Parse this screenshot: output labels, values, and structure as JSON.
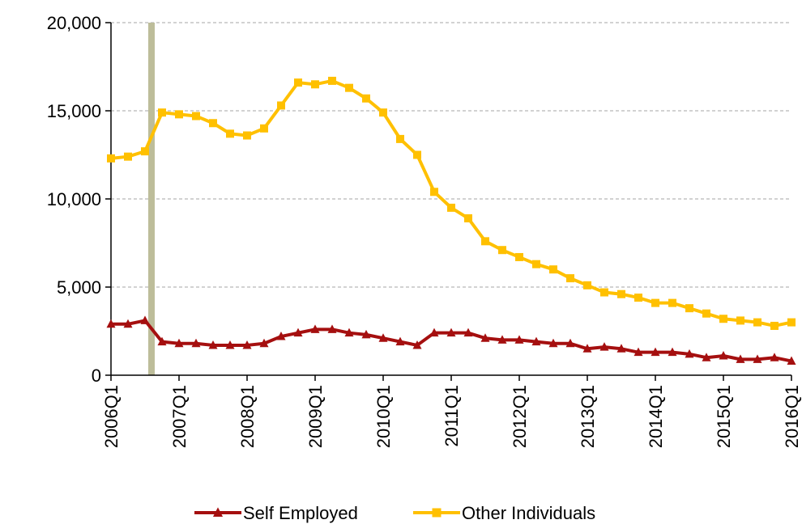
{
  "chart_data": {
    "type": "line",
    "title": "",
    "xlabel": "",
    "ylabel": "",
    "ylim": [
      0,
      20000
    ],
    "y_ticks": [
      0,
      5000,
      10000,
      15000,
      20000
    ],
    "y_tick_labels": [
      "0",
      "5,000",
      "10,000",
      "15,000",
      "20,000"
    ],
    "x_tick_labels": [
      "2006Q1",
      "2007Q1",
      "2008Q1",
      "2009Q1",
      "2010Q1",
      "2011Q1",
      "2012Q1",
      "2013Q1",
      "2014Q1",
      "2015Q1",
      "2016Q1"
    ],
    "grid": "horizontal-dashed",
    "legend_position": "bottom",
    "marker_line_after": "2006Q3",
    "colors": {
      "self_employed": "#A50F0F",
      "other_individuals": "#FFC000",
      "marker_line": "#BDBD9A",
      "grid": "#A6A6A6"
    },
    "x": [
      "2006Q1",
      "2006Q2",
      "2006Q3",
      "2006Q4",
      "2007Q1",
      "2007Q2",
      "2007Q3",
      "2007Q4",
      "2008Q1",
      "2008Q2",
      "2008Q3",
      "2008Q4",
      "2009Q1",
      "2009Q2",
      "2009Q3",
      "2009Q4",
      "2010Q1",
      "2010Q2",
      "2010Q3",
      "2010Q4",
      "2011Q1",
      "2011Q2",
      "2011Q3",
      "2011Q4",
      "2012Q1",
      "2012Q2",
      "2012Q3",
      "2012Q4",
      "2013Q1",
      "2013Q2",
      "2013Q3",
      "2013Q4",
      "2014Q1",
      "2014Q2",
      "2014Q3",
      "2014Q4",
      "2015Q1",
      "2015Q2",
      "2015Q3",
      "2015Q4",
      "2016Q1"
    ],
    "series": [
      {
        "name": "Self Employed",
        "marker": "triangle",
        "values": [
          2900,
          2900,
          3100,
          1900,
          1800,
          1800,
          1700,
          1700,
          1700,
          1800,
          2200,
          2400,
          2600,
          2600,
          2400,
          2300,
          2100,
          1900,
          1700,
          2400,
          2400,
          2400,
          2100,
          2000,
          2000,
          1900,
          1800,
          1800,
          1500,
          1600,
          1500,
          1300,
          1300,
          1300,
          1200,
          1000,
          1100,
          900,
          900,
          1000,
          800
        ]
      },
      {
        "name": "Other Individuals",
        "marker": "square",
        "values": [
          12300,
          12400,
          12700,
          14900,
          14800,
          14700,
          14300,
          13700,
          13600,
          14000,
          15300,
          16600,
          16500,
          16700,
          16300,
          15700,
          14900,
          13400,
          12500,
          10400,
          9500,
          8900,
          7600,
          7100,
          6700,
          6300,
          6000,
          5500,
          5100,
          4700,
          4600,
          4400,
          4100,
          4100,
          3800,
          3500,
          3200,
          3100,
          3000,
          2800,
          3000
        ]
      }
    ]
  }
}
